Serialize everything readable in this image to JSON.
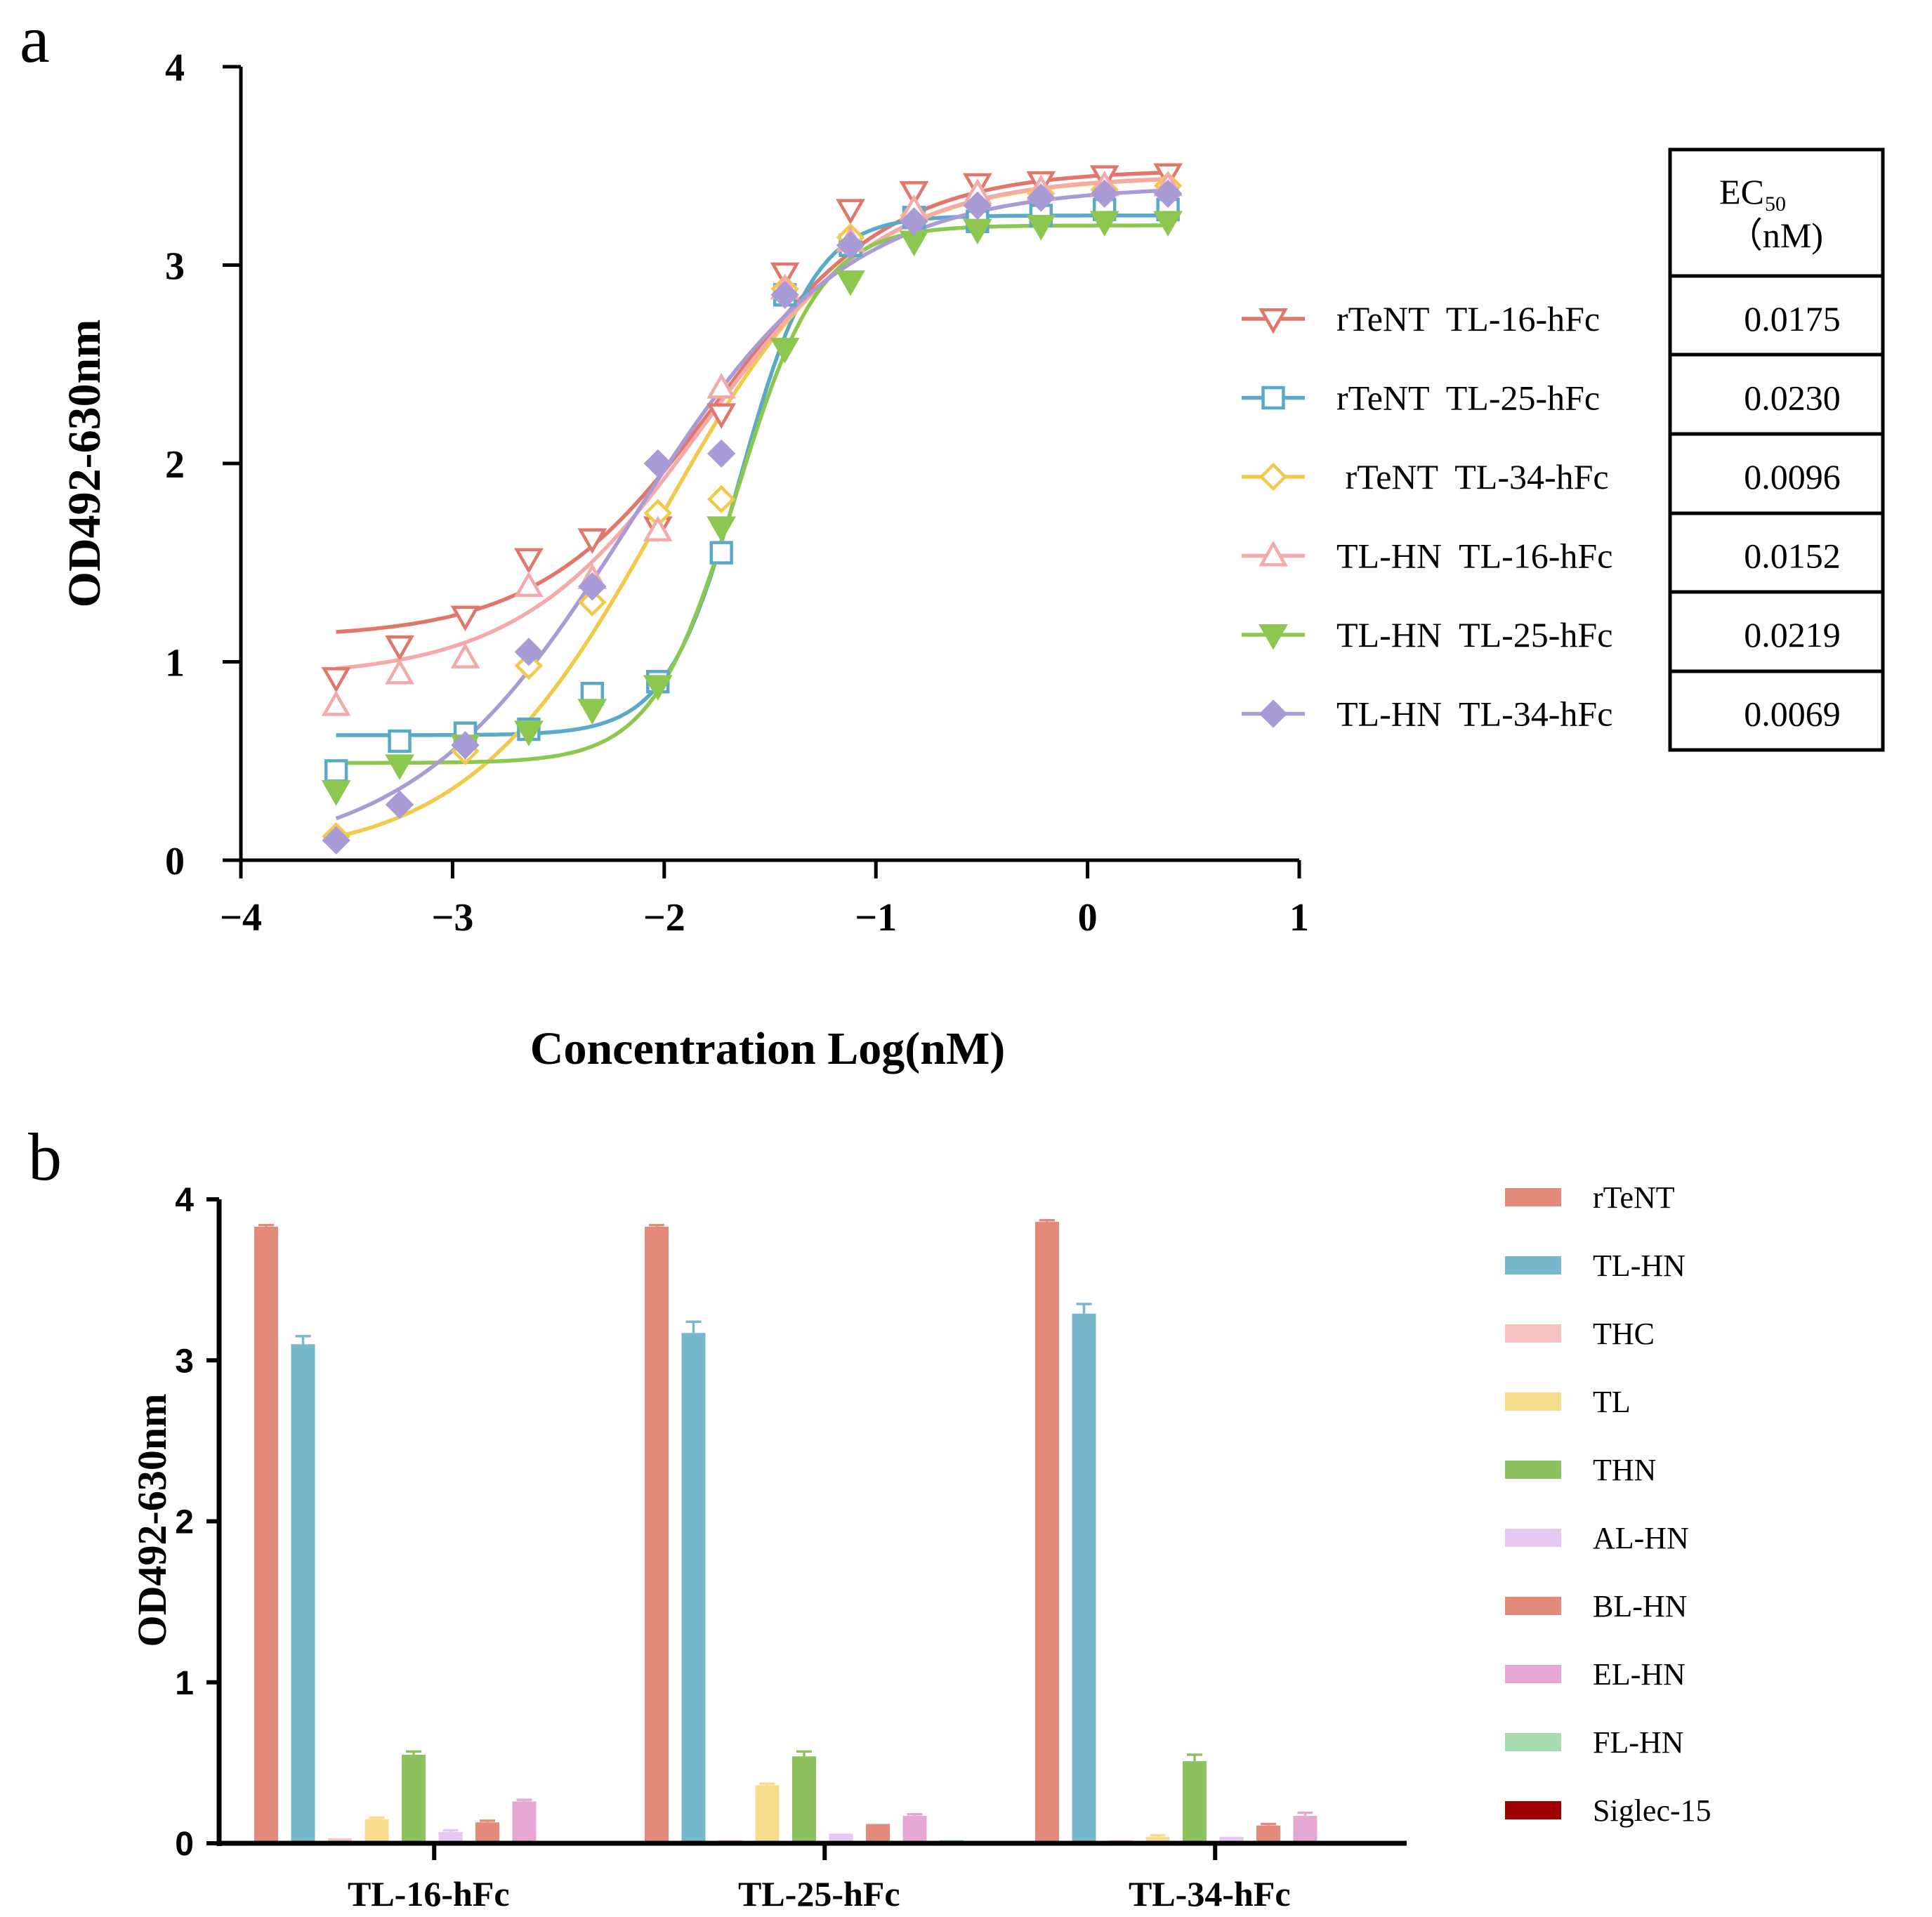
{
  "panel_a_label": "a",
  "panel_b_label": "b",
  "chart_data": [
    {
      "type": "line",
      "subtype": "dose-response",
      "title": "",
      "xlabel": "Concentration Log(nM)",
      "ylabel": "OD492-630nm",
      "xlim": [
        -4,
        1
      ],
      "ylim": [
        0,
        4
      ],
      "xticks": [
        -4,
        -3,
        -2,
        -1,
        0,
        1
      ],
      "xtick_labels": [
        "−4",
        "−3",
        "−2",
        "−1",
        "0",
        "1"
      ],
      "yticks": [
        0,
        1,
        2,
        3,
        4
      ],
      "ytick_labels": [
        "0",
        "1",
        "2",
        "3",
        "4"
      ],
      "x": [
        -3.55,
        -3.25,
        -2.94,
        -2.64,
        -2.34,
        -2.03,
        -1.73,
        -1.43,
        -1.12,
        -0.82,
        -0.52,
        -0.22,
        0.08,
        0.38
      ],
      "series": [
        {
          "name": "rTeNT  TL-16-hFc",
          "marker": "triangle-down-open",
          "color": "#e0776a",
          "ec50": "0.0175",
          "values": [
            0.92,
            1.08,
            1.23,
            1.52,
            1.62,
            1.68,
            2.25,
            2.96,
            3.28,
            3.37,
            3.41,
            3.42,
            3.45,
            3.46
          ],
          "fit": {
            "bottom": 1.12,
            "top": 3.48,
            "logec50": -1.757,
            "hill": 1.05
          }
        },
        {
          "name": "rTeNT  TL-25-hFc",
          "marker": "square-open",
          "color": "#5aa9c8",
          "ec50": "0.0230",
          "values": [
            0.45,
            0.6,
            0.64,
            0.66,
            0.84,
            0.9,
            1.55,
            2.85,
            3.1,
            3.24,
            3.22,
            3.25,
            3.28,
            3.28
          ],
          "fit": {
            "bottom": 0.63,
            "top": 3.25,
            "logec50": -1.638,
            "hill": 2.5
          }
        },
        {
          "name": " rTeNT  TL-34-hFc",
          "marker": "diamond-open",
          "color": "#f2c94c",
          "ec50": "0.0096",
          "values": [
            0.12,
            0.28,
            0.55,
            0.98,
            1.3,
            1.75,
            1.82,
            2.88,
            3.14,
            3.25,
            3.3,
            3.36,
            3.38,
            3.4
          ],
          "fit": {
            "bottom": 0.0,
            "top": 3.45,
            "logec50": -2.018,
            "hill": 0.95
          }
        },
        {
          "name": "TL-HN  TL-16-hFc",
          "marker": "triangle-up-open",
          "color": "#f4aaaa",
          "ec50": "0.0152",
          "values": [
            0.78,
            0.94,
            1.02,
            1.38,
            1.42,
            1.66,
            2.38,
            2.88,
            3.12,
            3.28,
            3.36,
            3.38,
            3.4,
            3.4
          ],
          "fit": {
            "bottom": 0.92,
            "top": 3.45,
            "logec50": -1.818,
            "hill": 1.0
          }
        },
        {
          "name": "TL-HN  TL-25-hFc",
          "marker": "triangle-down-filled",
          "color": "#8cc850",
          "ec50": "0.0219",
          "values": [
            0.35,
            0.48,
            0.58,
            0.65,
            0.76,
            0.88,
            1.68,
            2.58,
            2.92,
            3.12,
            3.18,
            3.2,
            3.22,
            3.22
          ],
          "fit": {
            "bottom": 0.49,
            "top": 3.2,
            "logec50": -1.66,
            "hill": 2.2
          }
        },
        {
          "name": "TL-HN  TL-34-hFc",
          "marker": "diamond-filled",
          "color": "#a99bd6",
          "ec50": "0.0069",
          "values": [
            0.1,
            0.28,
            0.58,
            1.05,
            1.38,
            2.0,
            2.05,
            2.85,
            3.1,
            3.22,
            3.3,
            3.34,
            3.36,
            3.36
          ],
          "fit": {
            "bottom": 0.0,
            "top": 3.4,
            "logec50": -2.161,
            "hill": 0.85
          }
        }
      ],
      "legend_position": "right",
      "table": {
        "header_line1": "EC",
        "header_sub": "50",
        "header_line2": "（nM)",
        "rows": [
          "0.0175",
          "0.0230",
          "0.0096",
          "0.0152",
          "0.0219",
          "0.0069"
        ]
      }
    },
    {
      "type": "bar",
      "title": "",
      "xlabel": "",
      "ylabel": "OD492-630nm",
      "ylim": [
        0,
        4
      ],
      "yticks": [
        0,
        1,
        2,
        3,
        4
      ],
      "ytick_labels": [
        "0",
        "1",
        "2",
        "3",
        "4"
      ],
      "categories": [
        "TL-16-hFc",
        "TL-25-hFc",
        "TL-34-hFc"
      ],
      "series": [
        {
          "name": "rTeNT",
          "color": "#e48a7c",
          "values": [
            3.83,
            3.83,
            3.86
          ],
          "err": [
            0.01,
            0.01,
            0.01
          ]
        },
        {
          "name": "TL-HN",
          "color": "#78b8cc",
          "values": [
            3.1,
            3.17,
            3.29
          ],
          "err": [
            0.05,
            0.07,
            0.06
          ]
        },
        {
          "name": "THC",
          "color": "#f6c3c0",
          "values": [
            0.03,
            0.02,
            0.02
          ],
          "err": [
            0.0,
            0.0,
            0.0
          ]
        },
        {
          "name": "TL",
          "color": "#f6dc8c",
          "values": [
            0.15,
            0.36,
            0.04
          ],
          "err": [
            0.01,
            0.01,
            0.01
          ]
        },
        {
          "name": "THN",
          "color": "#8cc35e",
          "values": [
            0.55,
            0.54,
            0.51
          ],
          "err": [
            0.02,
            0.03,
            0.04
          ]
        },
        {
          "name": "AL-HN",
          "color": "#e6c8f2",
          "values": [
            0.07,
            0.06,
            0.04
          ],
          "err": [
            0.01,
            0.0,
            0.0
          ]
        },
        {
          "name": "BL-HN",
          "color": "#e48a7c",
          "values": [
            0.13,
            0.12,
            0.11
          ],
          "err": [
            0.01,
            0.0,
            0.01
          ]
        },
        {
          "name": "EL-HN",
          "color": "#e6a8d2",
          "values": [
            0.26,
            0.17,
            0.17
          ],
          "err": [
            0.01,
            0.01,
            0.02
          ]
        },
        {
          "name": "FL-HN",
          "color": "#a8dcae",
          "values": [
            0.01,
            0.02,
            0.01
          ],
          "err": [
            0.0,
            0.0,
            0.0
          ]
        },
        {
          "name": "Siglec-15",
          "color": "#a00000",
          "values": [
            0.0,
            0.0,
            0.01
          ],
          "err": [
            0.0,
            0.0,
            0.0
          ]
        }
      ],
      "legend_position": "right"
    }
  ]
}
